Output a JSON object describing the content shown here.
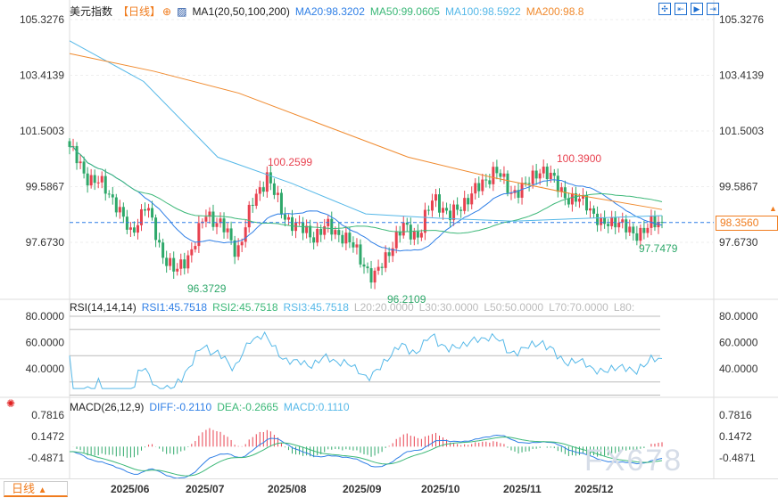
{
  "header": {
    "title": "美元指数",
    "period": "【日线】",
    "indicator": "MA1(20,50,100,200)",
    "ma20": "MA20:98.3202",
    "ma50": "MA50:99.0605",
    "ma100": "MA100:98.5922",
    "ma200": "MA200:98.8"
  },
  "rsi_header": {
    "title": "RSI(14,14,14)",
    "rsi1": "RSI1:45.7518",
    "rsi2": "RSI2:45.7518",
    "rsi3": "RSI3:45.7518",
    "l20": "L20:20.0000",
    "l30": "L30:30.0000",
    "l50": "L50:50.0000",
    "l70": "L70:70.0000",
    "l80": "L80:"
  },
  "macd_header": {
    "title": "MACD(26,12,9)",
    "diff": "DIFF:-0.2110",
    "dea": "DEA:-0.2665",
    "macd": "MACD:0.1110"
  },
  "tools": [
    "crosshair-icon",
    "zoom-range-icon",
    "play-icon",
    "exit-icon"
  ],
  "bottom": {
    "period_button": "日线",
    "period_arrow": "▲"
  },
  "watermark": "FX678",
  "current_price": "98.3560",
  "colors": {
    "up": "#e8414f",
    "down": "#2ea86a",
    "ma20": "#2f7fe6",
    "ma50": "#3cb878",
    "ma100": "#55b8e8",
    "ma200": "#f08a2e",
    "accent": "#f07c1e"
  },
  "chart_data": {
    "type": "candlestick",
    "price_axis": {
      "ticks": [
        "105.3276",
        "103.4139",
        "101.5003",
        "99.5867",
        "97.6730"
      ],
      "range": [
        96.0,
        105.3276
      ]
    },
    "date_ticks": [
      "2025/06",
      "2025/07",
      "2025/08",
      "2025/09",
      "2025/10",
      "2025/11",
      "2025/12"
    ],
    "close_approx": [
      [
        "2025/05/15",
        100.95
      ],
      [
        "2025/05/20",
        99.99
      ],
      [
        "2025/05/27",
        99.7
      ],
      [
        "2025/06/03",
        99.1
      ],
      [
        "2025/06/10",
        97.9
      ],
      [
        "2025/06/16",
        99.0
      ],
      [
        "2025/06/20",
        97.4
      ],
      [
        "2025/06/25",
        96.6
      ],
      [
        "2025/07/01",
        97.4
      ],
      [
        "2025/07/07",
        98.65
      ],
      [
        "2025/07/11",
        98.3
      ],
      [
        "2025/07/15",
        97.3
      ],
      [
        "2025/07/21",
        98.95
      ],
      [
        "2025/07/23",
        100.0
      ],
      [
        "2025/07/25",
        98.65
      ],
      [
        "2025/07/30",
        98.2
      ],
      [
        "2025/08/07",
        97.9
      ],
      [
        "2025/08/15",
        98.2
      ],
      [
        "2025/08/21",
        97.9
      ],
      [
        "2025/08/27",
        97.3
      ],
      [
        "2025/09/01",
        96.35
      ],
      [
        "2025/09/03",
        97.4
      ],
      [
        "2025/09/08",
        98.2
      ],
      [
        "2025/09/15",
        97.9
      ],
      [
        "2025/09/19",
        99.3
      ],
      [
        "2025/09/24",
        98.5
      ],
      [
        "2025/09/30",
        99.1
      ],
      [
        "2025/10/07",
        99.57
      ],
      [
        "2025/10/10",
        100.2
      ],
      [
        "2025/10/16",
        99.4
      ],
      [
        "2025/10/21",
        99.57
      ],
      [
        "2025/10/24",
        100.25
      ],
      [
        "2025/10/28",
        99.7
      ],
      [
        "2025/11/04",
        99.1
      ],
      [
        "2025/11/11",
        99.1
      ],
      [
        "2025/11/14",
        98.2
      ],
      [
        "2025/11/19",
        98.5
      ],
      [
        "2025/11/24",
        97.9
      ],
      [
        "2025/11/28",
        98.2
      ],
      [
        "2025/12/02",
        98.36
      ]
    ],
    "ma100_approx": [
      104.6,
      103.2,
      100.6,
      99.7,
      98.65,
      98.5,
      98.4,
      98.5,
      98.59
    ],
    "ma200_approx": [
      104.16,
      103.55,
      102.8,
      101.7,
      100.6,
      99.9,
      99.3,
      98.8
    ],
    "annotations": {
      "high1": "100.2599",
      "low1": "96.3729",
      "low2": "96.2109",
      "high2": "100.3900",
      "low3": "97.7479"
    },
    "rsi_axis": [
      "80.0000",
      "60.0000",
      "40.0000"
    ],
    "macd_axis": [
      "0.7816",
      "0.1472",
      "-0.4871"
    ]
  }
}
